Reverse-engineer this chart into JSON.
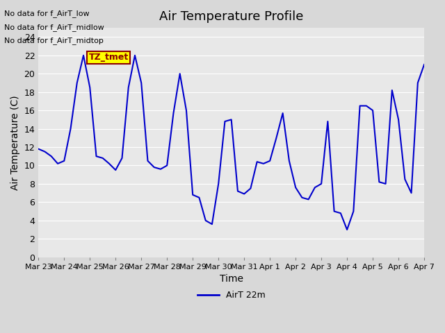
{
  "title": "Air Temperature Profile",
  "xlabel": "Time",
  "ylabel": "Air Temperature (C)",
  "legend_label": "AirT 22m",
  "line_color": "#0000cc",
  "ylim": [
    0,
    25
  ],
  "yticks": [
    0,
    2,
    4,
    6,
    8,
    10,
    12,
    14,
    16,
    18,
    20,
    22,
    24
  ],
  "annotations": [
    "No data for f_AirT_low",
    "No data for f_AirT_midlow",
    "No data for f_AirT_midtop"
  ],
  "tz_label": "TZ_tmet",
  "x_tick_labels": [
    "Mar 23",
    "Mar 24",
    "Mar 25",
    "Mar 26",
    "Mar 27",
    "Mar 28",
    "Mar 29",
    "Mar 30",
    "Mar 31",
    "Apr 1",
    "Apr 2",
    "Apr 3",
    "Apr 4",
    "Apr 5",
    "Apr 6",
    "Apr 7"
  ],
  "x_ticks": [
    0,
    1,
    2,
    3,
    4,
    5,
    6,
    7,
    8,
    9,
    10,
    11,
    12,
    13,
    14,
    15
  ],
  "x_values": [
    0.0,
    0.25,
    0.5,
    0.75,
    1.0,
    1.25,
    1.5,
    1.75,
    2.0,
    2.25,
    2.5,
    2.75,
    3.0,
    3.25,
    3.5,
    3.75,
    4.0,
    4.25,
    4.5,
    4.75,
    5.0,
    5.25,
    5.5,
    5.75,
    6.0,
    6.25,
    6.5,
    6.75,
    7.0,
    7.25,
    7.5,
    7.75,
    8.0,
    8.25,
    8.5,
    8.75,
    9.0,
    9.25,
    9.5,
    9.75,
    10.0,
    10.25,
    10.5,
    10.75,
    11.0,
    11.25,
    11.5,
    11.75,
    12.0,
    12.25,
    12.5,
    12.75,
    13.0,
    13.25,
    13.5,
    13.75,
    14.0,
    14.25,
    14.5,
    14.75,
    15.0
  ],
  "y_values": [
    11.8,
    11.5,
    11.0,
    10.2,
    10.5,
    14.0,
    19.0,
    22.0,
    18.5,
    11.0,
    10.8,
    10.2,
    9.5,
    10.8,
    18.5,
    22.0,
    19.0,
    10.5,
    9.8,
    9.6,
    10.0,
    15.7,
    20.0,
    16.0,
    6.8,
    6.5,
    4.0,
    3.6,
    8.0,
    14.8,
    15.0,
    7.2,
    6.9,
    7.5,
    10.4,
    10.2,
    10.5,
    13.0,
    15.7,
    10.5,
    7.6,
    6.5,
    6.3,
    7.6,
    8.0,
    14.8,
    5.0,
    4.8,
    3.0,
    5.0,
    16.5,
    16.5,
    16.0,
    8.2,
    8.0,
    18.2,
    15.0,
    8.5,
    7.0,
    19.0,
    21.0
  ]
}
